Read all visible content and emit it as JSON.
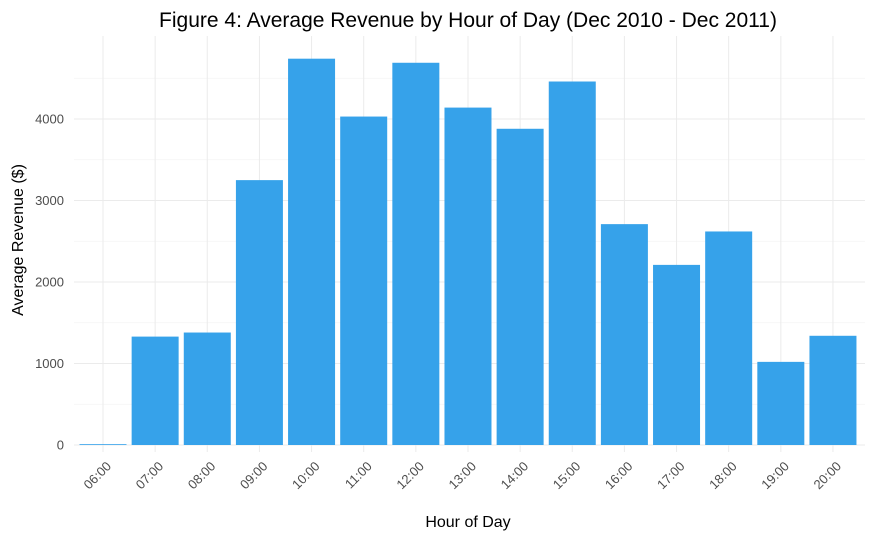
{
  "chart_data": {
    "type": "bar",
    "title": "Figure 4: Average Revenue by Hour of Day (Dec 2010 - Dec 2011)",
    "xlabel": "Hour of Day",
    "ylabel": "Average Revenue ($)",
    "categories": [
      "06:00",
      "07:00",
      "08:00",
      "09:00",
      "10:00",
      "11:00",
      "12:00",
      "13:00",
      "14:00",
      "15:00",
      "16:00",
      "17:00",
      "18:00",
      "19:00",
      "20:00"
    ],
    "values": [
      10,
      1330,
      1380,
      3250,
      4740,
      4030,
      4690,
      4140,
      3880,
      4460,
      2710,
      2210,
      2620,
      1020,
      1340
    ],
    "ylim": [
      0,
      4900
    ],
    "yticks": [
      0,
      1000,
      2000,
      3000,
      4000
    ],
    "ytick_labels": [
      "0",
      "1000",
      "2000",
      "3000",
      "4000"
    ],
    "grid": true,
    "bar_color": "#36a2ea",
    "legend": "none"
  }
}
